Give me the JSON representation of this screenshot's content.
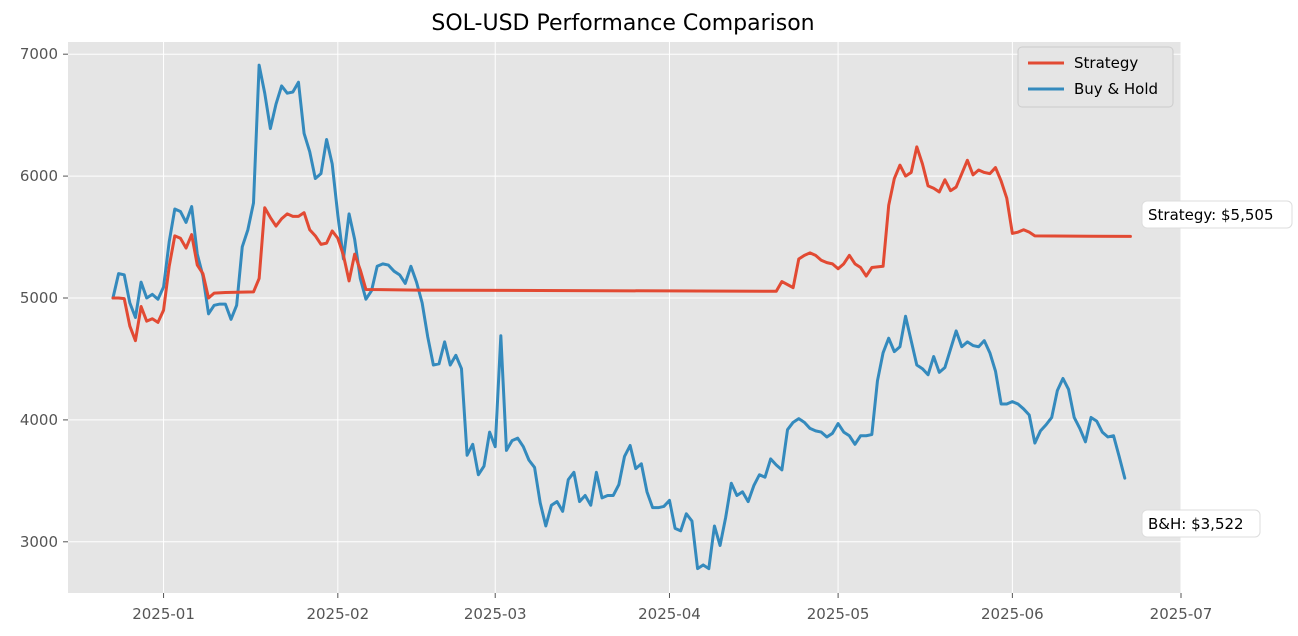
{
  "chart_data": {
    "type": "line",
    "title": "SOL-USD Performance Comparison",
    "xlabel": "",
    "ylabel": "",
    "xlim": [
      "2024-12-15",
      "2025-07-01"
    ],
    "ylim": [
      2580,
      7100
    ],
    "x_ticks": [
      "2025-01",
      "2025-02",
      "2025-03",
      "2025-04",
      "2025-05",
      "2025-06",
      "2025-07"
    ],
    "y_ticks": [
      3000,
      4000,
      5000,
      6000,
      7000
    ],
    "grid": true,
    "legend_position": "top-right",
    "background_color": "#e5e5e5",
    "series": [
      {
        "name": "Strategy",
        "color": "#e24a33",
        "points": [
          [
            "2024-12-23",
            5000
          ],
          [
            "2024-12-24",
            5000
          ],
          [
            "2024-12-25",
            4995
          ],
          [
            "2024-12-26",
            4770
          ],
          [
            "2024-12-27",
            4650
          ],
          [
            "2024-12-28",
            4930
          ],
          [
            "2024-12-29",
            4810
          ],
          [
            "2024-12-30",
            4830
          ],
          [
            "2024-12-31",
            4800
          ],
          [
            "2025-01-01",
            4900
          ],
          [
            "2025-01-02",
            5260
          ],
          [
            "2025-01-03",
            5510
          ],
          [
            "2025-01-04",
            5490
          ],
          [
            "2025-01-05",
            5410
          ],
          [
            "2025-01-06",
            5520
          ],
          [
            "2025-01-07",
            5270
          ],
          [
            "2025-01-08",
            5200
          ],
          [
            "2025-01-09",
            5000
          ],
          [
            "2025-01-10",
            5040
          ],
          [
            "2025-01-12",
            5045
          ],
          [
            "2025-01-17",
            5050
          ],
          [
            "2025-01-18",
            5160
          ],
          [
            "2025-01-19",
            5740
          ],
          [
            "2025-01-20",
            5660
          ],
          [
            "2025-01-21",
            5590
          ],
          [
            "2025-01-22",
            5650
          ],
          [
            "2025-01-23",
            5690
          ],
          [
            "2025-01-24",
            5670
          ],
          [
            "2025-01-25",
            5670
          ],
          [
            "2025-01-26",
            5700
          ],
          [
            "2025-01-27",
            5560
          ],
          [
            "2025-01-28",
            5510
          ],
          [
            "2025-01-29",
            5440
          ],
          [
            "2025-01-30",
            5450
          ],
          [
            "2025-01-31",
            5550
          ],
          [
            "2025-02-01",
            5490
          ],
          [
            "2025-02-02",
            5350
          ],
          [
            "2025-02-03",
            5140
          ],
          [
            "2025-02-04",
            5360
          ],
          [
            "2025-02-05",
            5230
          ],
          [
            "2025-02-06",
            5070
          ],
          [
            "2025-02-15",
            5065
          ],
          [
            "2025-04-20",
            5055
          ],
          [
            "2025-04-21",
            5135
          ],
          [
            "2025-04-23",
            5085
          ],
          [
            "2025-04-24",
            5320
          ],
          [
            "2025-04-25",
            5350
          ],
          [
            "2025-04-26",
            5370
          ],
          [
            "2025-04-27",
            5350
          ],
          [
            "2025-04-28",
            5310
          ],
          [
            "2025-04-29",
            5290
          ],
          [
            "2025-04-30",
            5280
          ],
          [
            "2025-05-01",
            5240
          ],
          [
            "2025-05-02",
            5280
          ],
          [
            "2025-05-03",
            5350
          ],
          [
            "2025-05-04",
            5280
          ],
          [
            "2025-05-05",
            5250
          ],
          [
            "2025-05-06",
            5180
          ],
          [
            "2025-05-07",
            5250
          ],
          [
            "2025-05-09",
            5260
          ],
          [
            "2025-05-10",
            5760
          ],
          [
            "2025-05-11",
            5980
          ],
          [
            "2025-05-12",
            6090
          ],
          [
            "2025-05-13",
            6000
          ],
          [
            "2025-05-14",
            6030
          ],
          [
            "2025-05-15",
            6240
          ],
          [
            "2025-05-16",
            6100
          ],
          [
            "2025-05-17",
            5920
          ],
          [
            "2025-05-18",
            5900
          ],
          [
            "2025-05-19",
            5870
          ],
          [
            "2025-05-20",
            5970
          ],
          [
            "2025-05-21",
            5880
          ],
          [
            "2025-05-22",
            5910
          ],
          [
            "2025-05-23",
            6020
          ],
          [
            "2025-05-24",
            6130
          ],
          [
            "2025-05-25",
            6010
          ],
          [
            "2025-05-26",
            6050
          ],
          [
            "2025-05-27",
            6030
          ],
          [
            "2025-05-28",
            6020
          ],
          [
            "2025-05-29",
            6070
          ],
          [
            "2025-05-30",
            5960
          ],
          [
            "2025-05-31",
            5820
          ],
          [
            "2025-06-01",
            5530
          ],
          [
            "2025-06-02",
            5540
          ],
          [
            "2025-06-03",
            5560
          ],
          [
            "2025-06-04",
            5540
          ],
          [
            "2025-06-05",
            5510
          ],
          [
            "2025-06-15",
            5507
          ],
          [
            "2025-06-22",
            5505
          ]
        ]
      },
      {
        "name": "Buy & Hold",
        "color": "#348abd",
        "points": [
          [
            "2024-12-23",
            5000
          ],
          [
            "2024-12-24",
            5200
          ],
          [
            "2024-12-25",
            5190
          ],
          [
            "2024-12-26",
            4960
          ],
          [
            "2024-12-27",
            4840
          ],
          [
            "2024-12-28",
            5130
          ],
          [
            "2024-12-29",
            5000
          ],
          [
            "2024-12-30",
            5030
          ],
          [
            "2024-12-31",
            4990
          ],
          [
            "2025-01-01",
            5090
          ],
          [
            "2025-01-02",
            5460
          ],
          [
            "2025-01-03",
            5730
          ],
          [
            "2025-01-04",
            5710
          ],
          [
            "2025-01-05",
            5620
          ],
          [
            "2025-01-06",
            5750
          ],
          [
            "2025-01-07",
            5360
          ],
          [
            "2025-01-08",
            5180
          ],
          [
            "2025-01-09",
            4870
          ],
          [
            "2025-01-10",
            4940
          ],
          [
            "2025-01-11",
            4950
          ],
          [
            "2025-01-12",
            4950
          ],
          [
            "2025-01-13",
            4825
          ],
          [
            "2025-01-14",
            4940
          ],
          [
            "2025-01-15",
            5420
          ],
          [
            "2025-01-16",
            5560
          ],
          [
            "2025-01-17",
            5780
          ],
          [
            "2025-01-18",
            6910
          ],
          [
            "2025-01-19",
            6680
          ],
          [
            "2025-01-20",
            6390
          ],
          [
            "2025-01-21",
            6590
          ],
          [
            "2025-01-22",
            6740
          ],
          [
            "2025-01-23",
            6680
          ],
          [
            "2025-01-24",
            6690
          ],
          [
            "2025-01-25",
            6770
          ],
          [
            "2025-01-26",
            6350
          ],
          [
            "2025-01-27",
            6200
          ],
          [
            "2025-01-28",
            5980
          ],
          [
            "2025-01-29",
            6020
          ],
          [
            "2025-01-30",
            6300
          ],
          [
            "2025-01-31",
            6100
          ],
          [
            "2025-02-01",
            5680
          ],
          [
            "2025-02-02",
            5320
          ],
          [
            "2025-02-03",
            5690
          ],
          [
            "2025-02-04",
            5480
          ],
          [
            "2025-02-05",
            5160
          ],
          [
            "2025-02-06",
            4990
          ],
          [
            "2025-02-07",
            5060
          ],
          [
            "2025-02-08",
            5260
          ],
          [
            "2025-02-09",
            5280
          ],
          [
            "2025-02-10",
            5270
          ],
          [
            "2025-02-11",
            5220
          ],
          [
            "2025-02-12",
            5190
          ],
          [
            "2025-02-13",
            5120
          ],
          [
            "2025-02-14",
            5260
          ],
          [
            "2025-02-15",
            5130
          ],
          [
            "2025-02-16",
            4960
          ],
          [
            "2025-02-17",
            4680
          ],
          [
            "2025-02-18",
            4450
          ],
          [
            "2025-02-19",
            4460
          ],
          [
            "2025-02-20",
            4640
          ],
          [
            "2025-02-21",
            4450
          ],
          [
            "2025-02-22",
            4530
          ],
          [
            "2025-02-23",
            4420
          ],
          [
            "2025-02-24",
            3710
          ],
          [
            "2025-02-25",
            3800
          ],
          [
            "2025-02-26",
            3550
          ],
          [
            "2025-02-27",
            3620
          ],
          [
            "2025-02-28",
            3900
          ],
          [
            "2025-03-01",
            3780
          ],
          [
            "2025-03-02",
            4690
          ],
          [
            "2025-03-03",
            3750
          ],
          [
            "2025-03-04",
            3830
          ],
          [
            "2025-03-05",
            3850
          ],
          [
            "2025-03-06",
            3780
          ],
          [
            "2025-03-07",
            3670
          ],
          [
            "2025-03-08",
            3610
          ],
          [
            "2025-03-09",
            3320
          ],
          [
            "2025-03-10",
            3130
          ],
          [
            "2025-03-11",
            3300
          ],
          [
            "2025-03-12",
            3330
          ],
          [
            "2025-03-13",
            3250
          ],
          [
            "2025-03-14",
            3510
          ],
          [
            "2025-03-15",
            3570
          ],
          [
            "2025-03-16",
            3330
          ],
          [
            "2025-03-17",
            3380
          ],
          [
            "2025-03-18",
            3300
          ],
          [
            "2025-03-19",
            3570
          ],
          [
            "2025-03-20",
            3360
          ],
          [
            "2025-03-21",
            3380
          ],
          [
            "2025-03-22",
            3380
          ],
          [
            "2025-03-23",
            3470
          ],
          [
            "2025-03-24",
            3700
          ],
          [
            "2025-03-25",
            3790
          ],
          [
            "2025-03-26",
            3600
          ],
          [
            "2025-03-27",
            3640
          ],
          [
            "2025-03-28",
            3410
          ],
          [
            "2025-03-29",
            3280
          ],
          [
            "2025-03-30",
            3280
          ],
          [
            "2025-03-31",
            3290
          ],
          [
            "2025-04-01",
            3340
          ],
          [
            "2025-04-02",
            3110
          ],
          [
            "2025-04-03",
            3090
          ],
          [
            "2025-04-04",
            3230
          ],
          [
            "2025-04-05",
            3170
          ],
          [
            "2025-04-06",
            2780
          ],
          [
            "2025-04-07",
            2810
          ],
          [
            "2025-04-08",
            2780
          ],
          [
            "2025-04-09",
            3130
          ],
          [
            "2025-04-10",
            2970
          ],
          [
            "2025-04-11",
            3200
          ],
          [
            "2025-04-12",
            3480
          ],
          [
            "2025-04-13",
            3380
          ],
          [
            "2025-04-14",
            3410
          ],
          [
            "2025-04-15",
            3330
          ],
          [
            "2025-04-16",
            3460
          ],
          [
            "2025-04-17",
            3550
          ],
          [
            "2025-04-18",
            3530
          ],
          [
            "2025-04-19",
            3680
          ],
          [
            "2025-04-20",
            3630
          ],
          [
            "2025-04-21",
            3590
          ],
          [
            "2025-04-22",
            3920
          ],
          [
            "2025-04-23",
            3980
          ],
          [
            "2025-04-24",
            4010
          ],
          [
            "2025-04-25",
            3980
          ],
          [
            "2025-04-26",
            3930
          ],
          [
            "2025-04-27",
            3910
          ],
          [
            "2025-04-28",
            3900
          ],
          [
            "2025-04-29",
            3860
          ],
          [
            "2025-04-30",
            3890
          ],
          [
            "2025-05-01",
            3970
          ],
          [
            "2025-05-02",
            3900
          ],
          [
            "2025-05-03",
            3870
          ],
          [
            "2025-05-04",
            3800
          ],
          [
            "2025-05-05",
            3870
          ],
          [
            "2025-05-06",
            3870
          ],
          [
            "2025-05-07",
            3880
          ],
          [
            "2025-05-08",
            4320
          ],
          [
            "2025-05-09",
            4550
          ],
          [
            "2025-05-10",
            4670
          ],
          [
            "2025-05-11",
            4560
          ],
          [
            "2025-05-12",
            4600
          ],
          [
            "2025-05-13",
            4850
          ],
          [
            "2025-05-14",
            4650
          ],
          [
            "2025-05-15",
            4450
          ],
          [
            "2025-05-16",
            4420
          ],
          [
            "2025-05-17",
            4370
          ],
          [
            "2025-05-18",
            4520
          ],
          [
            "2025-05-19",
            4390
          ],
          [
            "2025-05-20",
            4430
          ],
          [
            "2025-05-21",
            4580
          ],
          [
            "2025-05-22",
            4730
          ],
          [
            "2025-05-23",
            4600
          ],
          [
            "2025-05-24",
            4640
          ],
          [
            "2025-05-25",
            4610
          ],
          [
            "2025-05-26",
            4600
          ],
          [
            "2025-05-27",
            4650
          ],
          [
            "2025-05-28",
            4550
          ],
          [
            "2025-05-29",
            4400
          ],
          [
            "2025-05-30",
            4130
          ],
          [
            "2025-05-31",
            4130
          ],
          [
            "2025-06-01",
            4150
          ],
          [
            "2025-06-02",
            4130
          ],
          [
            "2025-06-03",
            4090
          ],
          [
            "2025-06-04",
            4040
          ],
          [
            "2025-06-05",
            3810
          ],
          [
            "2025-06-06",
            3910
          ],
          [
            "2025-06-07",
            3960
          ],
          [
            "2025-06-08",
            4020
          ],
          [
            "2025-06-09",
            4240
          ],
          [
            "2025-06-10",
            4340
          ],
          [
            "2025-06-11",
            4250
          ],
          [
            "2025-06-12",
            4020
          ],
          [
            "2025-06-13",
            3930
          ],
          [
            "2025-06-14",
            3820
          ],
          [
            "2025-06-15",
            4020
          ],
          [
            "2025-06-16",
            3990
          ],
          [
            "2025-06-17",
            3900
          ],
          [
            "2025-06-18",
            3860
          ],
          [
            "2025-06-19",
            3870
          ],
          [
            "2025-06-20",
            3700
          ],
          [
            "2025-06-21",
            3522
          ]
        ]
      }
    ],
    "annotations": [
      {
        "text": "Strategy: $5,505",
        "series": 0
      },
      {
        "text": "B&H: $3,522",
        "series": 1
      }
    ]
  }
}
